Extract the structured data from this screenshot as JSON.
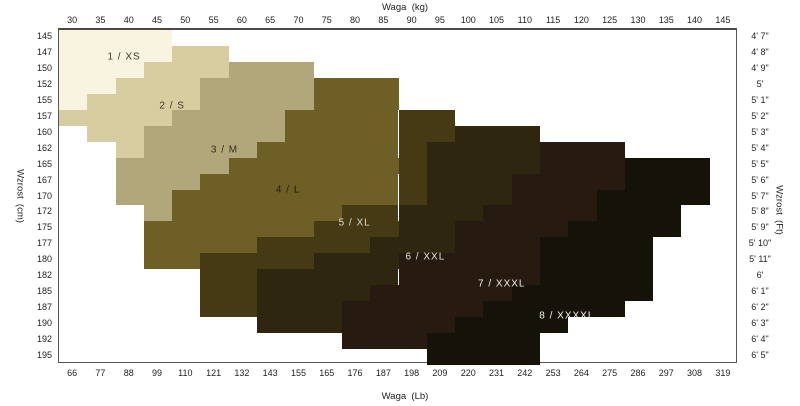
{
  "chart_data": {
    "type": "heatmap",
    "title": "",
    "axes": {
      "top": {
        "title": "Waga  (kg)",
        "ticks": [
          "30",
          "35",
          "40",
          "45",
          "50",
          "55",
          "60",
          "65",
          "70",
          "75",
          "80",
          "85",
          "90",
          "95",
          "100",
          "105",
          "110",
          "115",
          "120",
          "125",
          "130",
          "135",
          "140",
          "145"
        ]
      },
      "bottom": {
        "title": "Waga  (Lb)",
        "ticks": [
          "66",
          "77",
          "88",
          "99",
          "110",
          "121",
          "132",
          "143",
          "155",
          "165",
          "176",
          "187",
          "198",
          "209",
          "220",
          "231",
          "242",
          "253",
          "264",
          "275",
          "286",
          "297",
          "308",
          "319"
        ]
      },
      "left": {
        "title": "Wzrost  (cm)",
        "ticks": [
          "145",
          "147",
          "150",
          "152",
          "155",
          "157",
          "160",
          "162",
          "165",
          "167",
          "170",
          "172",
          "175",
          "177",
          "180",
          "182",
          "185",
          "187",
          "190",
          "192",
          "195"
        ]
      },
      "right": {
        "title": "Wzrost  (Ft)",
        "ticks": [
          "4' 7\"",
          "4' 8\"",
          "4' 9\"",
          "5'",
          "5' 1\"",
          "5' 2\"",
          "5' 3\"",
          "5' 4\"",
          "5' 5\"",
          "5' 6\"",
          "5' 7\"",
          "5' 8\"",
          "5' 9\"",
          "5' 10\"",
          "5' 11\"",
          "6'",
          "6' 1\"",
          "6' 2\"",
          "6' 3\"",
          "6' 4\"",
          "6' 5\""
        ]
      }
    },
    "legend_position": "none",
    "grid": false,
    "sizes": [
      {
        "name": "XS",
        "label": "1 / XS",
        "color": "#f8f4e0",
        "label_color": "#3d3a2a",
        "label_col": 1.8,
        "label_row": 1.2
      },
      {
        "name": "S",
        "label": "2 / S",
        "color": "#d7cda1",
        "label_color": "#3d3a2a",
        "label_col": 3.5,
        "label_row": 4.25
      },
      {
        "name": "M",
        "label": "3 / M",
        "color": "#b2a77b",
        "label_color": "#33301e",
        "label_col": 5.35,
        "label_row": 7.0
      },
      {
        "name": "L",
        "label": "4 / L",
        "color": "#6d5f26",
        "label_color": "#201c0a",
        "label_col": 7.6,
        "label_row": 9.55
      },
      {
        "name": "XL",
        "label": "5 / XL",
        "color": "#453a14",
        "label_color": "#d9d9d2",
        "label_col": 9.95,
        "label_row": 11.6
      },
      {
        "name": "XXL",
        "label": "6 / XXL",
        "color": "#2f260f",
        "label_color": "#e2e2dc",
        "label_col": 12.45,
        "label_row": 13.7
      },
      {
        "name": "XXXL",
        "label": "7 / XXXL",
        "color": "#271a10",
        "label_color": "#eeeeea",
        "label_col": 15.15,
        "label_row": 15.4
      },
      {
        "name": "XXXXL",
        "label": "8 / XXXXL",
        "color": "#15120a",
        "label_color": "#f2f2ee",
        "label_col": 17.45,
        "label_row": 17.4
      }
    ],
    "regions": [
      {
        "cm": "145",
        "segments": [
          {
            "size": "XS",
            "c0": 0,
            "c1": 3
          }
        ]
      },
      {
        "cm": "147",
        "segments": [
          {
            "size": "XS",
            "c0": 0,
            "c1": 3
          },
          {
            "size": "S",
            "c0": 4,
            "c1": 5
          }
        ]
      },
      {
        "cm": "150",
        "segments": [
          {
            "size": "XS",
            "c0": 0,
            "c1": 2
          },
          {
            "size": "S",
            "c0": 3,
            "c1": 5
          },
          {
            "size": "M",
            "c0": 6,
            "c1": 8
          }
        ]
      },
      {
        "cm": "152",
        "segments": [
          {
            "size": "XS",
            "c0": 0,
            "c1": 1
          },
          {
            "size": "S",
            "c0": 2,
            "c1": 4
          },
          {
            "size": "M",
            "c0": 5,
            "c1": 8
          },
          {
            "size": "L",
            "c0": 9,
            "c1": 11
          }
        ]
      },
      {
        "cm": "155",
        "segments": [
          {
            "size": "XS",
            "c0": 0,
            "c1": 0
          },
          {
            "size": "S",
            "c0": 1,
            "c1": 4
          },
          {
            "size": "M",
            "c0": 5,
            "c1": 8
          },
          {
            "size": "L",
            "c0": 9,
            "c1": 11
          }
        ]
      },
      {
        "cm": "157",
        "segments": [
          {
            "size": "S",
            "c0": 0,
            "c1": 3
          },
          {
            "size": "M",
            "c0": 4,
            "c1": 7
          },
          {
            "size": "L",
            "c0": 8,
            "c1": 11
          },
          {
            "size": "XL",
            "c0": 12,
            "c1": 13
          }
        ]
      },
      {
        "cm": "160",
        "segments": [
          {
            "size": "S",
            "c0": 1,
            "c1": 2
          },
          {
            "size": "M",
            "c0": 3,
            "c1": 7
          },
          {
            "size": "L",
            "c0": 8,
            "c1": 11
          },
          {
            "size": "XL",
            "c0": 12,
            "c1": 13
          },
          {
            "size": "XXL",
            "c0": 14,
            "c1": 16
          }
        ]
      },
      {
        "cm": "162",
        "segments": [
          {
            "size": "S",
            "c0": 2,
            "c1": 2
          },
          {
            "size": "M",
            "c0": 3,
            "c1": 6
          },
          {
            "size": "L",
            "c0": 7,
            "c1": 11
          },
          {
            "size": "XL",
            "c0": 12,
            "c1": 12
          },
          {
            "size": "XXL",
            "c0": 13,
            "c1": 16
          },
          {
            "size": "XXXL",
            "c0": 17,
            "c1": 19
          }
        ]
      },
      {
        "cm": "165",
        "segments": [
          {
            "size": "M",
            "c0": 2,
            "c1": 5
          },
          {
            "size": "L",
            "c0": 6,
            "c1": 11
          },
          {
            "size": "XL",
            "c0": 12,
            "c1": 12
          },
          {
            "size": "XXL",
            "c0": 13,
            "c1": 16
          },
          {
            "size": "XXXL",
            "c0": 17,
            "c1": 19
          },
          {
            "size": "XXXXL",
            "c0": 20,
            "c1": 22
          }
        ]
      },
      {
        "cm": "167",
        "segments": [
          {
            "size": "M",
            "c0": 2,
            "c1": 4
          },
          {
            "size": "L",
            "c0": 5,
            "c1": 11
          },
          {
            "size": "XL",
            "c0": 12,
            "c1": 12
          },
          {
            "size": "XXL",
            "c0": 13,
            "c1": 15
          },
          {
            "size": "XXXL",
            "c0": 16,
            "c1": 19
          },
          {
            "size": "XXXXL",
            "c0": 20,
            "c1": 22
          }
        ]
      },
      {
        "cm": "170",
        "segments": [
          {
            "size": "M",
            "c0": 2,
            "c1": 3
          },
          {
            "size": "L",
            "c0": 4,
            "c1": 11
          },
          {
            "size": "XL",
            "c0": 12,
            "c1": 12
          },
          {
            "size": "XXL",
            "c0": 13,
            "c1": 15
          },
          {
            "size": "XXXL",
            "c0": 16,
            "c1": 18
          },
          {
            "size": "XXXXL",
            "c0": 19,
            "c1": 22
          }
        ]
      },
      {
        "cm": "172",
        "segments": [
          {
            "size": "M",
            "c0": 3,
            "c1": 3
          },
          {
            "size": "L",
            "c0": 4,
            "c1": 9
          },
          {
            "size": "XL",
            "c0": 10,
            "c1": 11
          },
          {
            "size": "XXL",
            "c0": 12,
            "c1": 14
          },
          {
            "size": "XXXL",
            "c0": 15,
            "c1": 18
          },
          {
            "size": "XXXXL",
            "c0": 19,
            "c1": 21
          }
        ]
      },
      {
        "cm": "175",
        "segments": [
          {
            "size": "L",
            "c0": 3,
            "c1": 8
          },
          {
            "size": "XL",
            "c0": 9,
            "c1": 11
          },
          {
            "size": "XXL",
            "c0": 12,
            "c1": 13
          },
          {
            "size": "XXXL",
            "c0": 14,
            "c1": 17
          },
          {
            "size": "XXXXL",
            "c0": 18,
            "c1": 21
          }
        ]
      },
      {
        "cm": "177",
        "segments": [
          {
            "size": "L",
            "c0": 3,
            "c1": 6
          },
          {
            "size": "XL",
            "c0": 7,
            "c1": 10
          },
          {
            "size": "XXL",
            "c0": 11,
            "c1": 13
          },
          {
            "size": "XXXL",
            "c0": 14,
            "c1": 16
          },
          {
            "size": "XXXXL",
            "c0": 17,
            "c1": 20
          }
        ]
      },
      {
        "cm": "180",
        "segments": [
          {
            "size": "L",
            "c0": 3,
            "c1": 4
          },
          {
            "size": "XL",
            "c0": 5,
            "c1": 8
          },
          {
            "size": "XXL",
            "c0": 9,
            "c1": 11
          },
          {
            "size": "XXXL",
            "c0": 12,
            "c1": 16
          },
          {
            "size": "XXXXL",
            "c0": 17,
            "c1": 20
          }
        ]
      },
      {
        "cm": "182",
        "segments": [
          {
            "size": "XL",
            "c0": 5,
            "c1": 6
          },
          {
            "size": "XXL",
            "c0": 7,
            "c1": 11
          },
          {
            "size": "XXXL",
            "c0": 12,
            "c1": 16
          },
          {
            "size": "XXXXL",
            "c0": 17,
            "c1": 20
          }
        ]
      },
      {
        "cm": "185",
        "segments": [
          {
            "size": "XL",
            "c0": 5,
            "c1": 6
          },
          {
            "size": "XXL",
            "c0": 7,
            "c1": 10
          },
          {
            "size": "XXXL",
            "c0": 11,
            "c1": 15
          },
          {
            "size": "XXXXL",
            "c0": 16,
            "c1": 20
          }
        ]
      },
      {
        "cm": "187",
        "segments": [
          {
            "size": "XL",
            "c0": 5,
            "c1": 6
          },
          {
            "size": "XXL",
            "c0": 7,
            "c1": 9
          },
          {
            "size": "XXXL",
            "c0": 10,
            "c1": 14
          },
          {
            "size": "XXXXL",
            "c0": 15,
            "c1": 19
          }
        ]
      },
      {
        "cm": "190",
        "segments": [
          {
            "size": "XXL",
            "c0": 7,
            "c1": 9
          },
          {
            "size": "XXXL",
            "c0": 10,
            "c1": 13
          },
          {
            "size": "XXXXL",
            "c0": 14,
            "c1": 17
          }
        ]
      },
      {
        "cm": "192",
        "segments": [
          {
            "size": "XXXL",
            "c0": 10,
            "c1": 12
          },
          {
            "size": "XXXXL",
            "c0": 13,
            "c1": 16
          }
        ]
      },
      {
        "cm": "195",
        "segments": [
          {
            "size": "XXXXL",
            "c0": 13,
            "c1": 16
          }
        ]
      }
    ]
  }
}
